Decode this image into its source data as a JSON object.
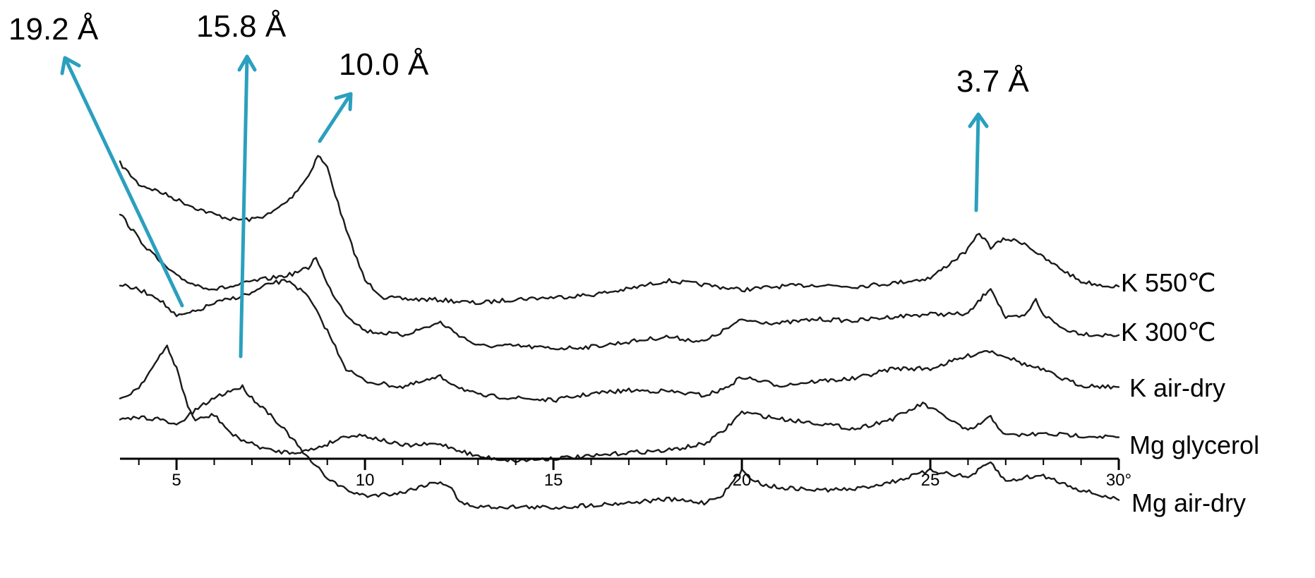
{
  "chart_data": {
    "type": "line",
    "xlabel": "",
    "ylabel": "",
    "xlim": [
      3.5,
      30
    ],
    "x_ticks": [
      5,
      10,
      15,
      20,
      25,
      30
    ],
    "x_tick_labels": [
      "5",
      "10",
      "15",
      "20",
      "25",
      "30°"
    ],
    "y_units": "arbitrary intensity (relative trace height)",
    "grid": false,
    "annotation_color": "#2AA0BE",
    "line_color": "#1a1a1a",
    "series": [
      {
        "name": "K 550℃",
        "points": [
          [
            3.5,
            195
          ],
          [
            4.0,
            220
          ],
          [
            4.5,
            228
          ],
          [
            5.0,
            238
          ],
          [
            5.5,
            248
          ],
          [
            6.0,
            256
          ],
          [
            6.5,
            262
          ],
          [
            7.0,
            262
          ],
          [
            7.5,
            255
          ],
          [
            8.0,
            238
          ],
          [
            8.5,
            210
          ],
          [
            8.75,
            185
          ],
          [
            9.0,
            200
          ],
          [
            9.5,
            275
          ],
          [
            10.0,
            335
          ],
          [
            10.5,
            355
          ],
          [
            11,
            357
          ],
          [
            12,
            358
          ],
          [
            13,
            362
          ],
          [
            14,
            357
          ],
          [
            15,
            355
          ],
          [
            16,
            352
          ],
          [
            17,
            345
          ],
          [
            18,
            335
          ],
          [
            19,
            340
          ],
          [
            20,
            346
          ],
          [
            21,
            342
          ],
          [
            22,
            340
          ],
          [
            23,
            342
          ],
          [
            24,
            338
          ],
          [
            25,
            332
          ],
          [
            25.5,
            315
          ],
          [
            26.0,
            298
          ],
          [
            26.3,
            278
          ],
          [
            26.6,
            295
          ],
          [
            27.0,
            285
          ],
          [
            27.5,
            290
          ],
          [
            28.0,
            308
          ],
          [
            28.5,
            322
          ],
          [
            29.0,
            336
          ],
          [
            29.5,
            340
          ],
          [
            30.0,
            342
          ]
        ]
      },
      {
        "name": "K 300℃",
        "points": [
          [
            3.5,
            255
          ],
          [
            4.0,
            285
          ],
          [
            4.5,
            310
          ],
          [
            5.0,
            330
          ],
          [
            5.5,
            340
          ],
          [
            6.0,
            345
          ],
          [
            6.5,
            342
          ],
          [
            7.0,
            336
          ],
          [
            7.5,
            332
          ],
          [
            8.0,
            328
          ],
          [
            8.5,
            320
          ],
          [
            8.7,
            306
          ],
          [
            9.0,
            340
          ],
          [
            9.5,
            375
          ],
          [
            10.0,
            395
          ],
          [
            11,
            400
          ],
          [
            12,
            385
          ],
          [
            12.5,
            400
          ],
          [
            13,
            413
          ],
          [
            14,
            413
          ],
          [
            15,
            416
          ],
          [
            16,
            414
          ],
          [
            17,
            408
          ],
          [
            18,
            402
          ],
          [
            19,
            408
          ],
          [
            20,
            382
          ],
          [
            21,
            386
          ],
          [
            22,
            381
          ],
          [
            23,
            383
          ],
          [
            24,
            378
          ],
          [
            25,
            375
          ],
          [
            26,
            375
          ],
          [
            26.6,
            343
          ],
          [
            27.0,
            380
          ],
          [
            27.5,
            378
          ],
          [
            27.8,
            358
          ],
          [
            28.0,
            375
          ],
          [
            28.5,
            392
          ],
          [
            29,
            398
          ],
          [
            29.5,
            400
          ],
          [
            30,
            400
          ]
        ]
      },
      {
        "name": "K air-dry",
        "points": [
          [
            3.5,
            340
          ],
          [
            4.0,
            346
          ],
          [
            4.5,
            355
          ],
          [
            5.0,
            378
          ],
          [
            5.5,
            372
          ],
          [
            6.0,
            362
          ],
          [
            6.5,
            356
          ],
          [
            7.0,
            350
          ],
          [
            7.5,
            338
          ],
          [
            8.0,
            335
          ],
          [
            8.5,
            355
          ],
          [
            9.0,
            395
          ],
          [
            9.5,
            440
          ],
          [
            10,
            455
          ],
          [
            11,
            462
          ],
          [
            12,
            450
          ],
          [
            12.5,
            462
          ],
          [
            13,
            472
          ],
          [
            14,
            475
          ],
          [
            15,
            478
          ],
          [
            16,
            470
          ],
          [
            17,
            466
          ],
          [
            18,
            467
          ],
          [
            19,
            472
          ],
          [
            19.5,
            465
          ],
          [
            20,
            450
          ],
          [
            21,
            460
          ],
          [
            22,
            455
          ],
          [
            23,
            452
          ],
          [
            24,
            440
          ],
          [
            25,
            440
          ],
          [
            26,
            425
          ],
          [
            26.5,
            418
          ],
          [
            27.0,
            425
          ],
          [
            27.5,
            435
          ],
          [
            28,
            442
          ],
          [
            28.5,
            452
          ],
          [
            29,
            460
          ],
          [
            30,
            462
          ]
        ]
      },
      {
        "name": "Mg glycerol",
        "points": [
          [
            3.5,
            478
          ],
          [
            4.0,
            462
          ],
          [
            4.5,
            430
          ],
          [
            4.75,
            413
          ],
          [
            5.0,
            440
          ],
          [
            5.3,
            485
          ],
          [
            5.5,
            502
          ],
          [
            6.0,
            495
          ],
          [
            6.5,
            520
          ],
          [
            7.0,
            530
          ],
          [
            7.5,
            538
          ],
          [
            8.0,
            540
          ],
          [
            8.5,
            538
          ],
          [
            9.0,
            530
          ],
          [
            9.5,
            520
          ],
          [
            10,
            520
          ],
          [
            11,
            532
          ],
          [
            12,
            530
          ],
          [
            13,
            545
          ],
          [
            14,
            550
          ],
          [
            15,
            547
          ],
          [
            16,
            545
          ],
          [
            17,
            540
          ],
          [
            18,
            538
          ],
          [
            19,
            530
          ],
          [
            19.5,
            515
          ],
          [
            20,
            492
          ],
          [
            21,
            500
          ],
          [
            22,
            505
          ],
          [
            23,
            512
          ],
          [
            24,
            500
          ],
          [
            24.8,
            482
          ],
          [
            25.5,
            500
          ],
          [
            26,
            515
          ],
          [
            26.6,
            498
          ],
          [
            27,
            520
          ],
          [
            28,
            518
          ],
          [
            29,
            520
          ],
          [
            30,
            522
          ]
        ]
      },
      {
        "name": "Mg air-dry",
        "points": [
          [
            3.5,
            502
          ],
          [
            4.0,
            498
          ],
          [
            4.5,
            500
          ],
          [
            5.0,
            508
          ],
          [
            5.5,
            490
          ],
          [
            6.0,
            475
          ],
          [
            6.5,
            465
          ],
          [
            6.75,
            462
          ],
          [
            7.0,
            475
          ],
          [
            7.5,
            495
          ],
          [
            8.0,
            520
          ],
          [
            8.5,
            548
          ],
          [
            9.0,
            570
          ],
          [
            9.5,
            585
          ],
          [
            10,
            592
          ],
          [
            11,
            588
          ],
          [
            11.5,
            580
          ],
          [
            12,
            575
          ],
          [
            12.3,
            582
          ],
          [
            12.5,
            600
          ],
          [
            13,
            605
          ],
          [
            14,
            605
          ],
          [
            15,
            606
          ],
          [
            16,
            603
          ],
          [
            17,
            600
          ],
          [
            18,
            596
          ],
          [
            19,
            600
          ],
          [
            19.5,
            590
          ],
          [
            20,
            562
          ],
          [
            20.5,
            578
          ],
          [
            21,
            582
          ],
          [
            22,
            585
          ],
          [
            23,
            584
          ],
          [
            24,
            575
          ],
          [
            25,
            562
          ],
          [
            25.5,
            565
          ],
          [
            26,
            570
          ],
          [
            26.6,
            552
          ],
          [
            27,
            575
          ],
          [
            27.5,
            570
          ],
          [
            28,
            568
          ],
          [
            29,
            585
          ],
          [
            30,
            597
          ]
        ]
      }
    ],
    "series_labels": [
      "K 550℃",
      "K 300℃",
      "K air-dry",
      "Mg glycerol",
      "Mg air-dry"
    ],
    "annotations": [
      {
        "text": "19.2 Å",
        "x": 5.0,
        "series": "K 300℃",
        "d_spacing_angstrom": 19.2
      },
      {
        "text": "15.8 Å",
        "x": 6.6,
        "series": "Mg glycerol",
        "d_spacing_angstrom": 15.8
      },
      {
        "text": "10.0 Å",
        "x": 8.8,
        "series": "K 550℃",
        "d_spacing_angstrom": 10.0
      },
      {
        "text": "3.7 Å",
        "x": 26.3,
        "series": "K 550℃",
        "d_spacing_angstrom": 3.7
      }
    ]
  }
}
